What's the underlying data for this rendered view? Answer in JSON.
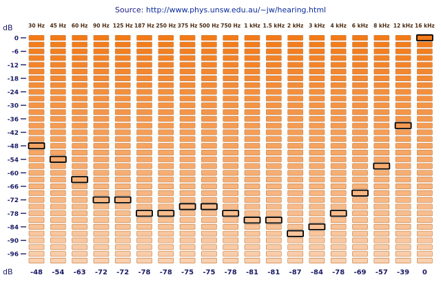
{
  "source": {
    "label": "Source:",
    "url": "http://www.phys.unsw.edu.au/~jw/hearing.html"
  },
  "chart_data": {
    "type": "heatmap",
    "title": "",
    "axis_label_top": "dB",
    "axis_label_bottom": "dB",
    "categories": [
      "30 Hz",
      "45 Hz",
      "60 Hz",
      "90 Hz",
      "125 Hz",
      "187 Hz",
      "250 Hz",
      "375 Hz",
      "500 Hz",
      "750 Hz",
      "1 kHz",
      "1.5 kHz",
      "2 kHz",
      "3 kHz",
      "4 kHz",
      "6 kHz",
      "8 kHz",
      "12 kHz",
      "16 kHz"
    ],
    "values": [
      -48,
      -54,
      -63,
      -72,
      -72,
      -78,
      -78,
      -75,
      -75,
      -78,
      -81,
      -81,
      -87,
      -84,
      -78,
      -69,
      -57,
      -39,
      0
    ],
    "value_labels": [
      "-48",
      "-54",
      "-63",
      "-72",
      "-72",
      "-78",
      "-78",
      "-75",
      "-75",
      "-78",
      "-81",
      "-81",
      "-87",
      "-84",
      "-78",
      "-69",
      "-57",
      "-39",
      "0"
    ],
    "yticks": [
      0,
      -6,
      -12,
      -18,
      -24,
      -30,
      -36,
      -42,
      -48,
      -54,
      -60,
      -66,
      -72,
      -78,
      -84,
      -90,
      -96
    ],
    "ytick_labels": [
      "0",
      "-6",
      "-12",
      "-18",
      "-24",
      "-30",
      "-36",
      "-42",
      "-48",
      "-54",
      "-60",
      "-66",
      "-72",
      "-78",
      "-84",
      "-90",
      "-96"
    ],
    "ylim": [
      -99,
      0
    ],
    "step_db": 3,
    "colors": {
      "cell_top": "#f27a18",
      "cell_bottom": "#f9cfae",
      "cell_border": "#c8864e",
      "selected_border": "#000000"
    }
  }
}
